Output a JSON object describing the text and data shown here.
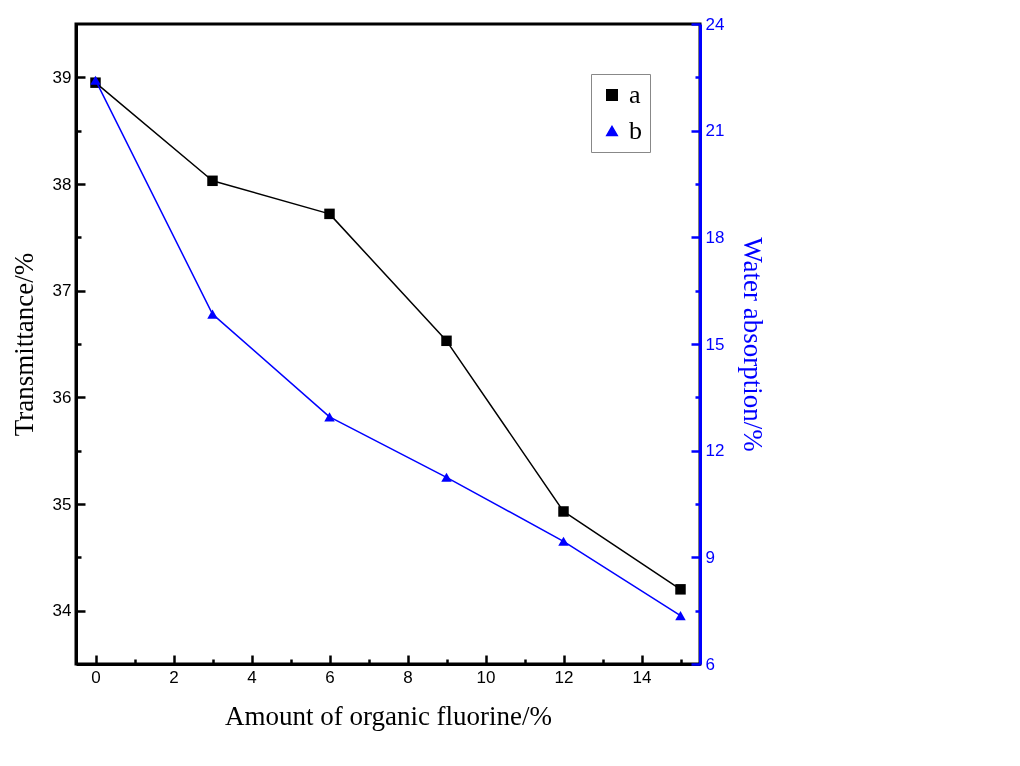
{
  "chart_data": {
    "type": "line",
    "xlabel": "Amount of organic fluorine/%",
    "ylabel": "Transmittance/%",
    "y2label": "Water absorption/%",
    "x": [
      0,
      3,
      6,
      9,
      12,
      15
    ],
    "series": [
      {
        "name": "a",
        "color": "#000000",
        "marker": "square",
        "values": [
          38.95,
          38.03,
          37.72,
          36.53,
          34.93,
          34.2
        ]
      },
      {
        "name": "b",
        "color": "#0000ff",
        "marker": "triangle",
        "axis": "y2",
        "values": [
          22.42,
          15.84,
          12.95,
          11.25,
          9.45,
          7.36
        ]
      }
    ],
    "xlim": [
      -0.5,
      15.5
    ],
    "xticks": [
      0,
      {
        "value": 1,
        "label": null
      },
      2,
      {
        "value": 3,
        "label": null
      },
      4,
      {
        "value": 5,
        "label": null
      },
      6,
      {
        "value": 7,
        "label": null
      },
      8,
      {
        "value": 9,
        "label": null
      },
      10,
      {
        "value": 11,
        "label": null
      },
      12,
      {
        "value": 13,
        "label": null
      },
      14,
      {
        "value": 15,
        "label": null
      }
    ],
    "ylim": [
      33.5,
      39.5
    ],
    "yticks": [
      34,
      {
        "value": 34.5,
        "label": null
      },
      35,
      {
        "value": 35.5,
        "label": null
      },
      36,
      {
        "value": 36.5,
        "label": null
      },
      37,
      {
        "value": 37.5,
        "label": null
      },
      38,
      {
        "value": 38.5,
        "label": null
      },
      39
    ],
    "y2lim": [
      6,
      24
    ],
    "y2ticks": [
      6,
      {
        "value": 7.5,
        "label": null
      },
      9,
      {
        "value": 10.5,
        "label": null
      },
      12,
      {
        "value": 13.5,
        "label": null
      },
      15,
      {
        "value": 16.5,
        "label": null
      },
      18,
      {
        "value": 19.5,
        "label": null
      },
      21,
      {
        "value": 22.5,
        "label": null
      },
      24
    ],
    "grid": false,
    "legend": "top right",
    "line_style": "solid"
  }
}
